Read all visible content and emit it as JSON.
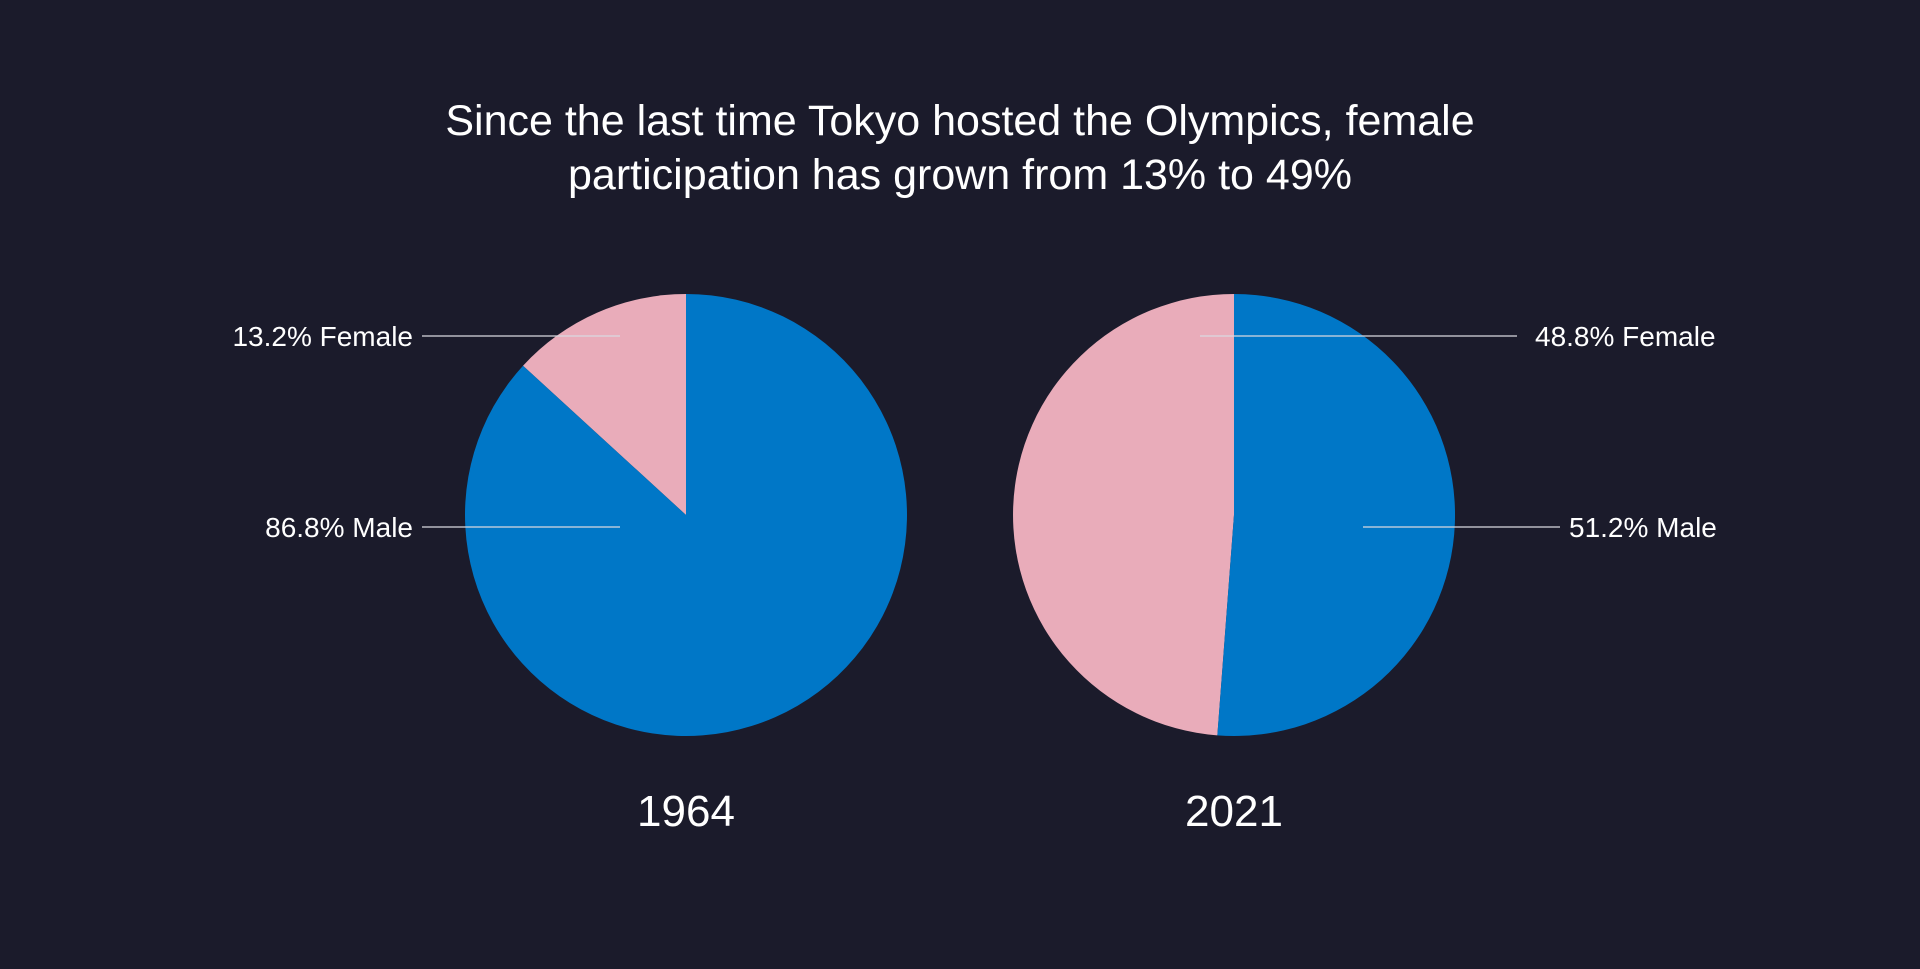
{
  "chart_data": {
    "type": "pie",
    "title": "Since the last time Tokyo hosted the Olympics, female participation has grown from 13% to 49%",
    "title_lines": [
      "Since the last time Tokyo hosted the Olympics, female",
      "participation has grown from 13% to 49%"
    ],
    "colors": {
      "background": "#1b1b2b",
      "Female": "#e9acba",
      "Male": "#0077c7",
      "text": "#ffffff"
    },
    "pies": [
      {
        "year": "1964",
        "slices": [
          {
            "name": "Female",
            "value": 13.2,
            "label": "13.2% Female"
          },
          {
            "name": "Male",
            "value": 86.8,
            "label": "86.8% Male"
          }
        ]
      },
      {
        "year": "2021",
        "slices": [
          {
            "name": "Female",
            "value": 48.8,
            "label": "48.8% Female"
          },
          {
            "name": "Male",
            "value": 51.2,
            "label": "51.2% Male"
          }
        ]
      }
    ]
  }
}
